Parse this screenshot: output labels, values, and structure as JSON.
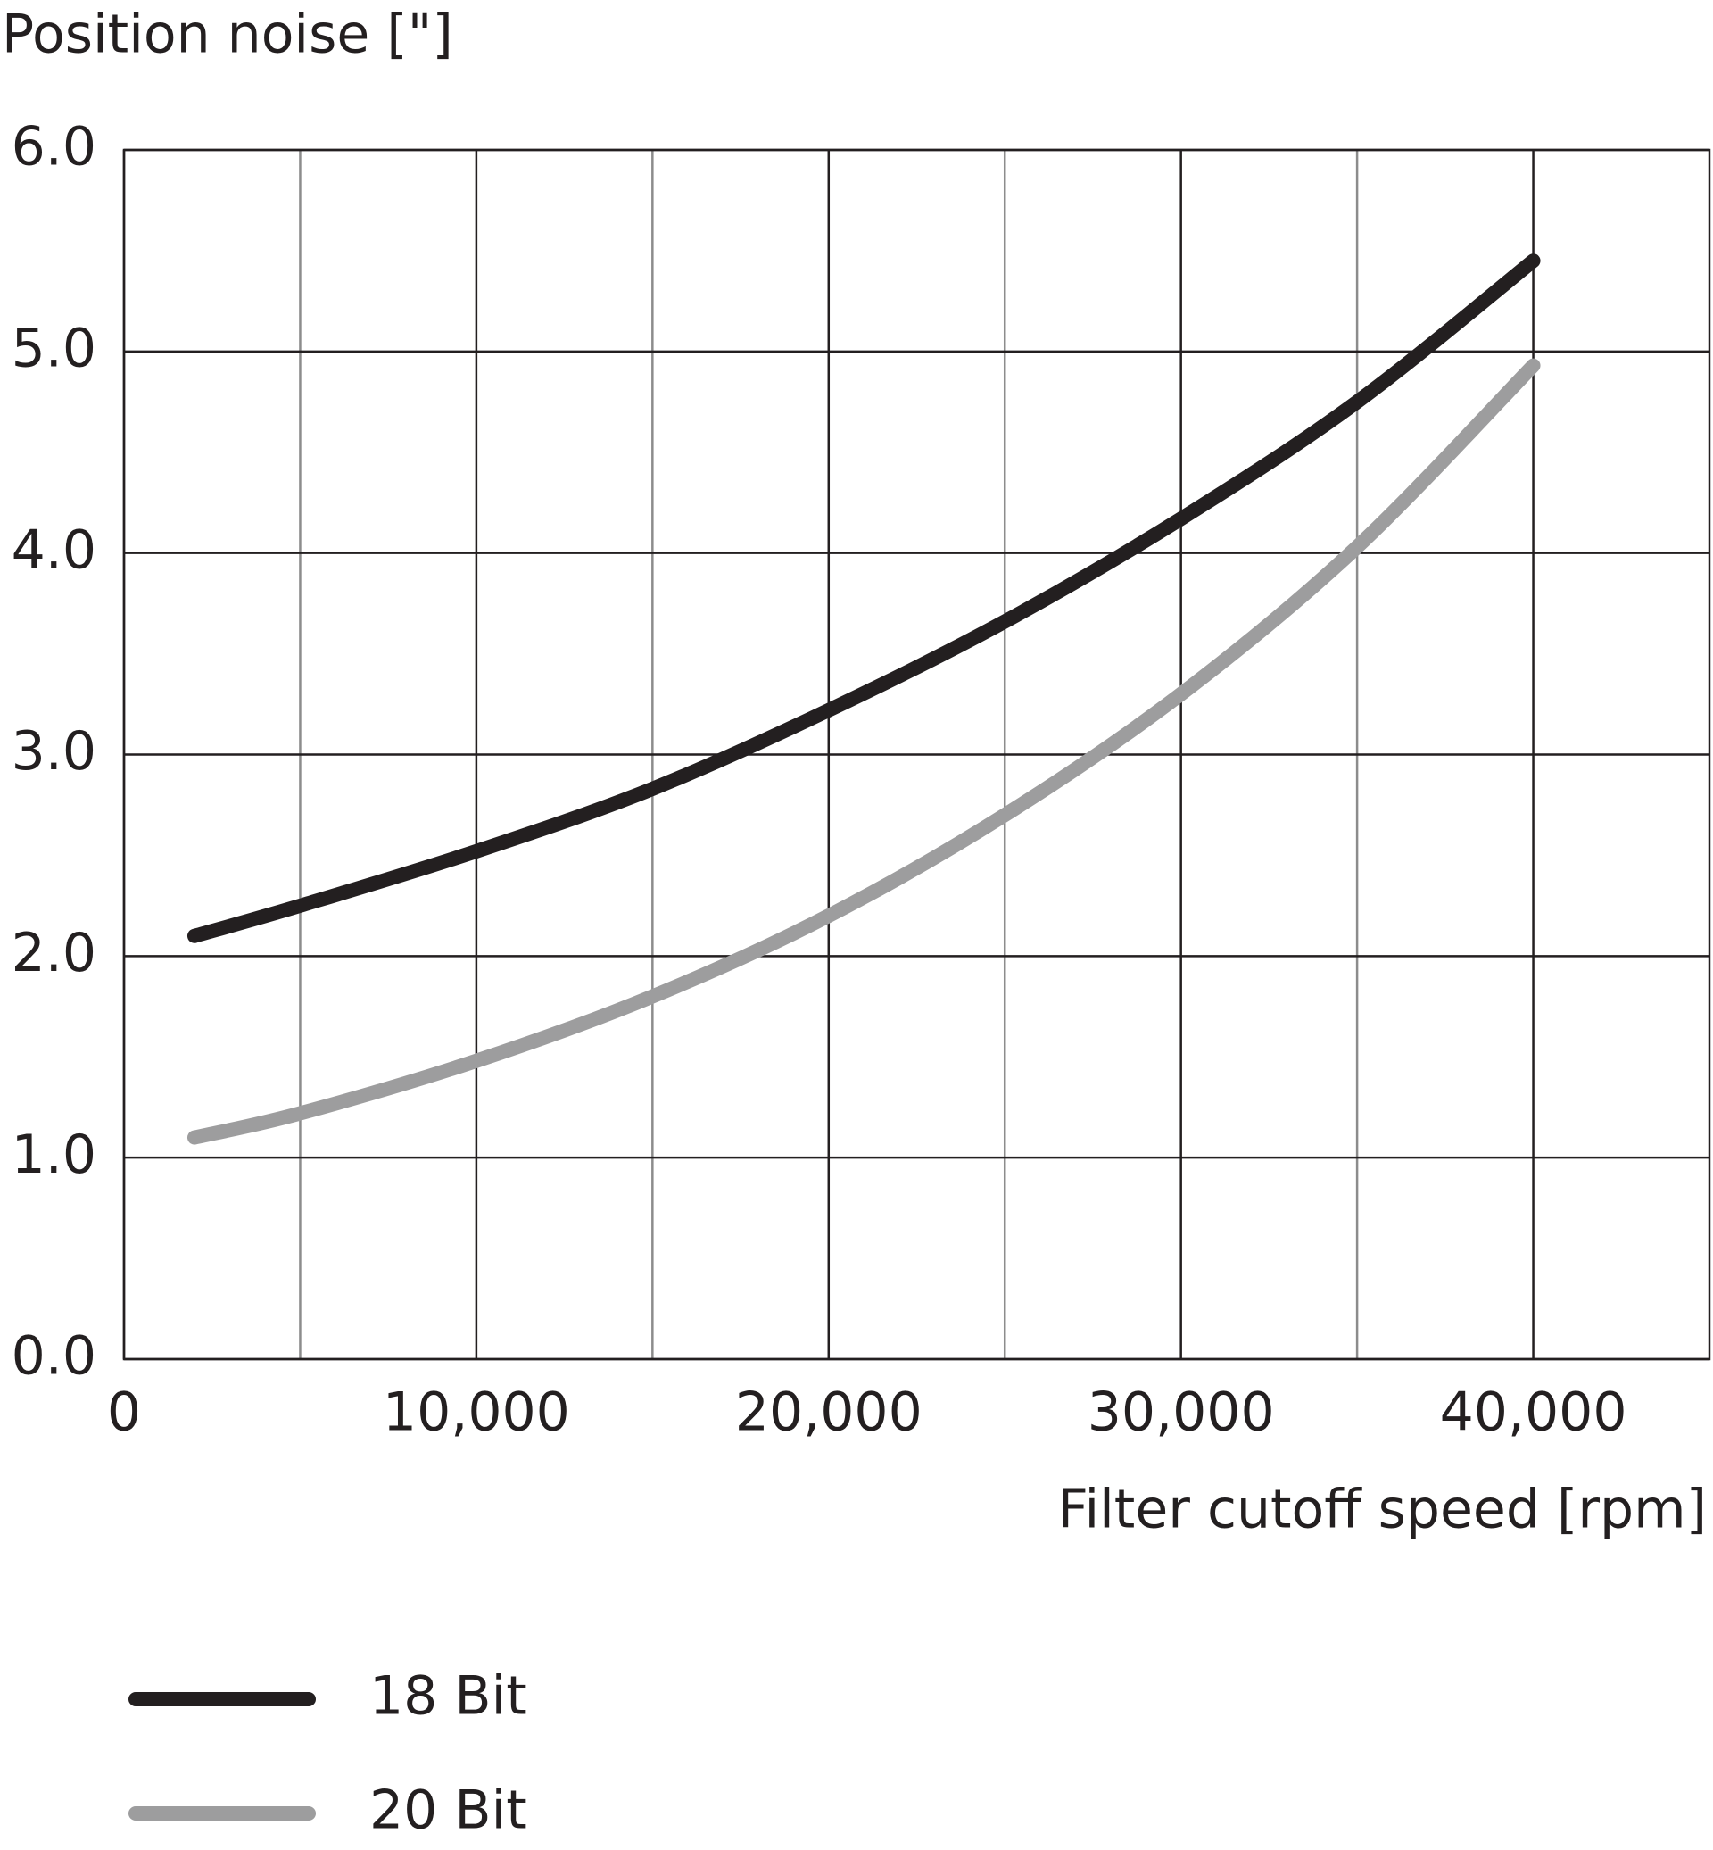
{
  "chart_data": {
    "type": "line",
    "y_label": "Position noise [\"]",
    "x_label": "Filter cutoff speed [rpm]",
    "x": [
      2000,
      5000,
      10000,
      15000,
      20000,
      25000,
      30000,
      35000,
      40000
    ],
    "series": [
      {
        "name": "18 Bit",
        "color": "#231f20",
        "values": [
          2.1,
          2.25,
          2.52,
          2.83,
          3.22,
          3.66,
          4.17,
          4.75,
          5.45
        ]
      },
      {
        "name": "20 Bit",
        "color": "#9d9d9e",
        "values": [
          1.1,
          1.22,
          1.48,
          1.8,
          2.2,
          2.7,
          3.3,
          4.03,
          4.93
        ]
      }
    ],
    "xlim": [
      0,
      45000
    ],
    "ylim": [
      0,
      6
    ],
    "xticks": [
      0,
      {
        "value": 10000,
        "label": "10,000"
      },
      {
        "value": 20000,
        "label": "20,000"
      },
      {
        "value": 30000,
        "label": "30,000"
      },
      {
        "value": 40000,
        "label": "40,000"
      }
    ],
    "xminorticks": [
      5000,
      15000,
      25000,
      35000
    ],
    "yticks": [
      {
        "value": 0,
        "label": "0.0"
      },
      {
        "value": 1,
        "label": "1.0"
      },
      {
        "value": 2,
        "label": "2.0"
      },
      {
        "value": 3,
        "label": "3.0"
      },
      {
        "value": 4,
        "label": "4.0"
      },
      {
        "value": 5,
        "label": "5.0"
      },
      {
        "value": 6,
        "label": "6.0"
      }
    ],
    "grid": true,
    "legend": "bottom-left"
  }
}
